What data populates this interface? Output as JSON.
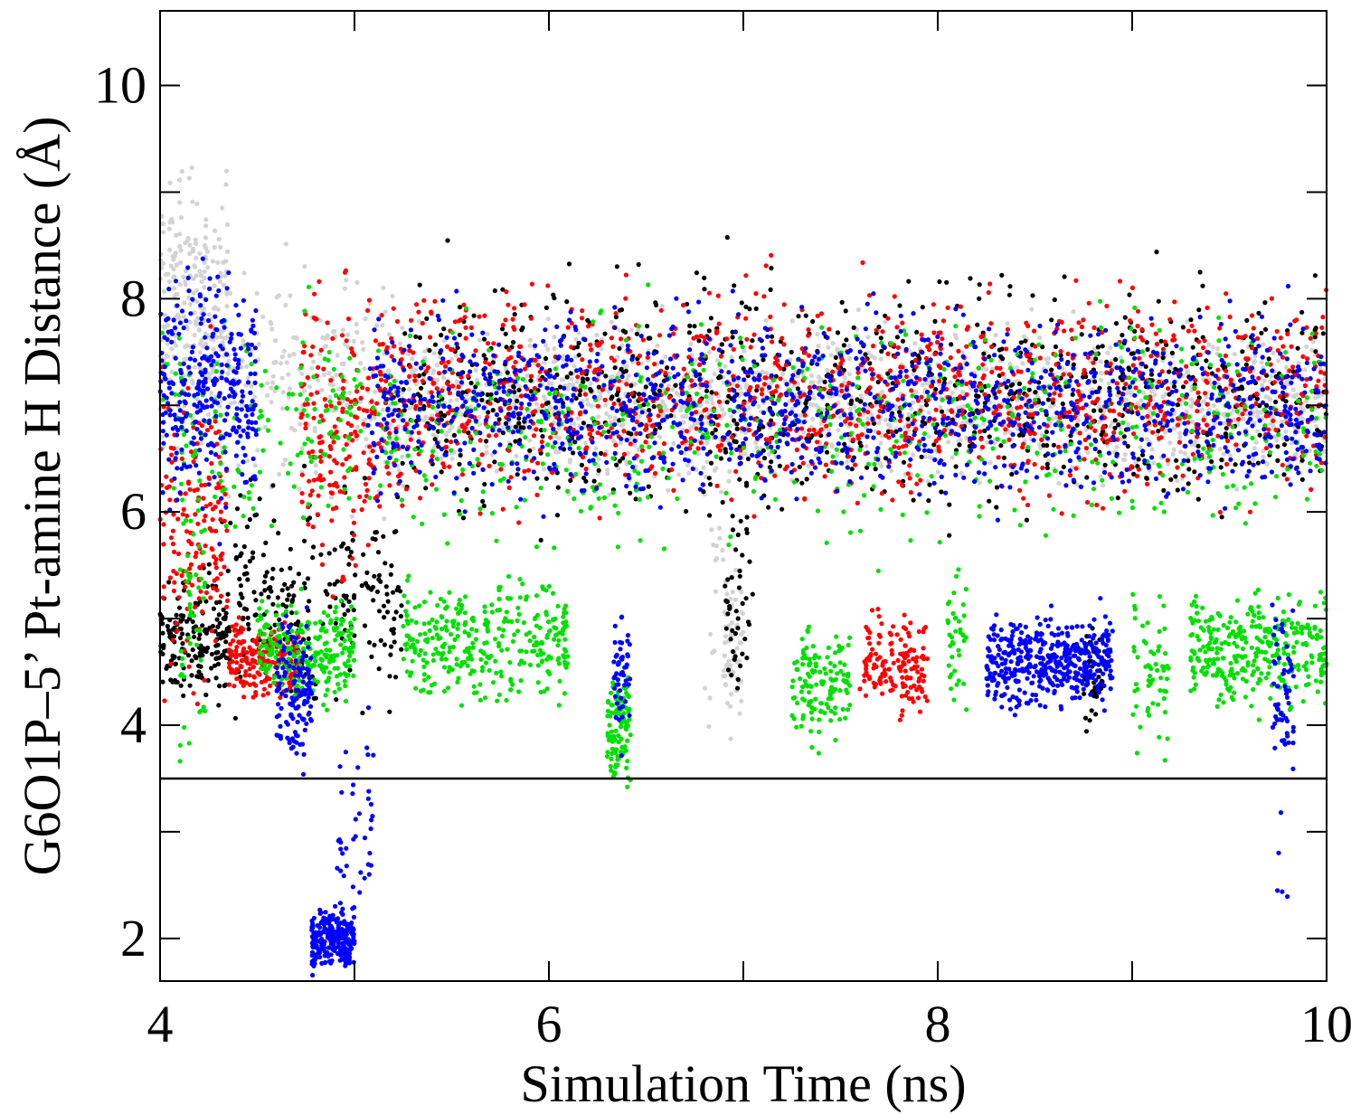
{
  "chart_data": {
    "type": "scatter",
    "title": "",
    "xlabel": "Simulation Time (ns)",
    "ylabel": "G6O1P–5’ Pt-amine H Distance (Å)",
    "xlim": [
      4,
      10
    ],
    "ylim": [
      1.6,
      10.7
    ],
    "x_ticks": [
      "4",
      "6",
      "8",
      "10"
    ],
    "y_ticks": [
      "2",
      "4",
      "6",
      "8",
      "10"
    ],
    "x_minor_step": 1,
    "y_minor_step": 1,
    "reference_line": {
      "y": 3.5,
      "color": "#000000"
    },
    "grid": false,
    "legend": "none",
    "series": [
      {
        "color": "#d3d3d3",
        "clusters": [
          {
            "x": [
              4.0,
              4.35
            ],
            "center": 7.9,
            "spread": 0.8,
            "n": 260
          },
          {
            "x": [
              4.35,
              5.2
            ],
            "center": 7.2,
            "spread": 0.7,
            "n": 220
          },
          {
            "x": [
              5.2,
              10.0
            ],
            "center": 7.0,
            "spread": 0.45,
            "n": 1500
          },
          {
            "x": [
              6.9,
              7.0
            ],
            "center": 4.8,
            "spread": 0.5,
            "n": 60
          },
          {
            "x": [
              6.8,
              6.9
            ],
            "center": 5.5,
            "spread": 1.0,
            "n": 25
          }
        ]
      },
      {
        "color": "#000000",
        "clusters": [
          {
            "x": [
              4.0,
              4.35
            ],
            "center": 4.8,
            "spread": 0.35,
            "n": 170
          },
          {
            "x": [
              4.3,
              5.25
            ],
            "center": 5.2,
            "spread": 0.7,
            "n": 260
          },
          {
            "x": [
              5.2,
              10.0
            ],
            "center": 7.1,
            "spread": 0.7,
            "n": 950
          },
          {
            "x": [
              6.9,
              7.05
            ],
            "center": 5.2,
            "spread": 0.6,
            "n": 45
          },
          {
            "x": [
              8.75,
              8.85
            ],
            "center": 4.5,
            "spread": 0.4,
            "n": 40
          }
        ]
      },
      {
        "color": "#ff0000",
        "clusters": [
          {
            "x": [
              4.0,
              4.35
            ],
            "center": 5.8,
            "spread": 0.9,
            "n": 170
          },
          {
            "x": [
              4.35,
              4.72
            ],
            "center": 4.6,
            "spread": 0.25,
            "n": 190
          },
          {
            "x": [
              4.72,
              5.2
            ],
            "center": 6.8,
            "spread": 0.9,
            "n": 210
          },
          {
            "x": [
              5.2,
              10.0
            ],
            "center": 7.1,
            "spread": 0.65,
            "n": 1200
          },
          {
            "x": [
              7.6,
              7.95
            ],
            "center": 4.6,
            "spread": 0.3,
            "n": 150
          }
        ]
      },
      {
        "color": "#00e000",
        "clusters": [
          {
            "x": [
              4.1,
              4.25
            ],
            "center": 5.0,
            "spread": 0.8,
            "n": 50
          },
          {
            "x": [
              4.5,
              5.0
            ],
            "center": 4.7,
            "spread": 0.3,
            "n": 250
          },
          {
            "x": [
              5.25,
              6.1
            ],
            "center": 4.8,
            "spread": 0.4,
            "n": 330
          },
          {
            "x": [
              6.3,
              6.42
            ],
            "center": 4.0,
            "spread": 0.4,
            "n": 110
          },
          {
            "x": [
              7.25,
              7.55
            ],
            "center": 4.4,
            "spread": 0.35,
            "n": 130
          },
          {
            "x": [
              8.05,
              8.15
            ],
            "center": 4.8,
            "spread": 0.4,
            "n": 40
          },
          {
            "x": [
              9.0,
              9.2
            ],
            "center": 4.5,
            "spread": 0.6,
            "n": 60
          },
          {
            "x": [
              9.3,
              10.0
            ],
            "center": 4.7,
            "spread": 0.35,
            "n": 330
          },
          {
            "x": [
              4.0,
              10.0
            ],
            "center": 6.8,
            "spread": 0.7,
            "n": 720
          }
        ]
      },
      {
        "color": "#0000ff",
        "clusters": [
          {
            "x": [
              4.0,
              4.5
            ],
            "center": 7.2,
            "spread": 0.7,
            "n": 320
          },
          {
            "x": [
              4.6,
              4.78
            ],
            "center": 4.3,
            "spread": 0.45,
            "n": 130
          },
          {
            "x": [
              4.78,
              5.0
            ],
            "center": 2.0,
            "spread": 0.18,
            "n": 240
          },
          {
            "x": [
              4.9,
              5.1
            ],
            "center": 3.1,
            "spread": 0.55,
            "n": 40
          },
          {
            "x": [
              5.05,
              10.0
            ],
            "center": 7.0,
            "spread": 0.55,
            "n": 1300
          },
          {
            "x": [
              6.33,
              6.42
            ],
            "center": 4.5,
            "spread": 0.4,
            "n": 50
          },
          {
            "x": [
              8.25,
              8.9
            ],
            "center": 4.6,
            "spread": 0.28,
            "n": 440
          },
          {
            "x": [
              9.72,
              9.83
            ],
            "center": 4.3,
            "spread": 0.5,
            "n": 60
          },
          {
            "x": [
              9.74,
              9.8
            ],
            "center": 2.6,
            "spread": 0.3,
            "n": 4
          }
        ]
      }
    ]
  }
}
